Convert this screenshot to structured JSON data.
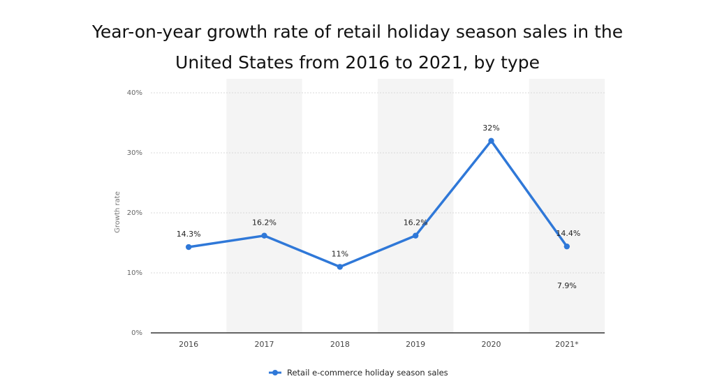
{
  "title_line1": "Year-on-year growth rate of retail holiday season sales in the",
  "title_line2": "United States from 2016 to 2021, by type",
  "colors": {
    "series": "#2f78d8",
    "grid": "#d9d9d9",
    "band": "#f4f4f4",
    "axis": "#333333"
  },
  "chart_data": {
    "type": "line",
    "categories": [
      "2016",
      "2017",
      "2018",
      "2019",
      "2020",
      "2021*"
    ],
    "ylabel": "Growth rate",
    "ylim": [
      0,
      40
    ],
    "yticks": [
      "0%",
      "10%",
      "20%",
      "30%",
      "40%"
    ],
    "grid": true,
    "legend": "bottom",
    "series": [
      {
        "name": "Retail e-commerce holiday season sales",
        "values": [
          14.3,
          16.2,
          11,
          16.2,
          32,
          14.4
        ],
        "labels": [
          "14.3%",
          "16.2%",
          "11%",
          "16.2%",
          "32%",
          "14.4%"
        ]
      }
    ],
    "annotations": [
      {
        "category": "2021*",
        "value": 7.9,
        "text": "7.9%"
      }
    ]
  }
}
